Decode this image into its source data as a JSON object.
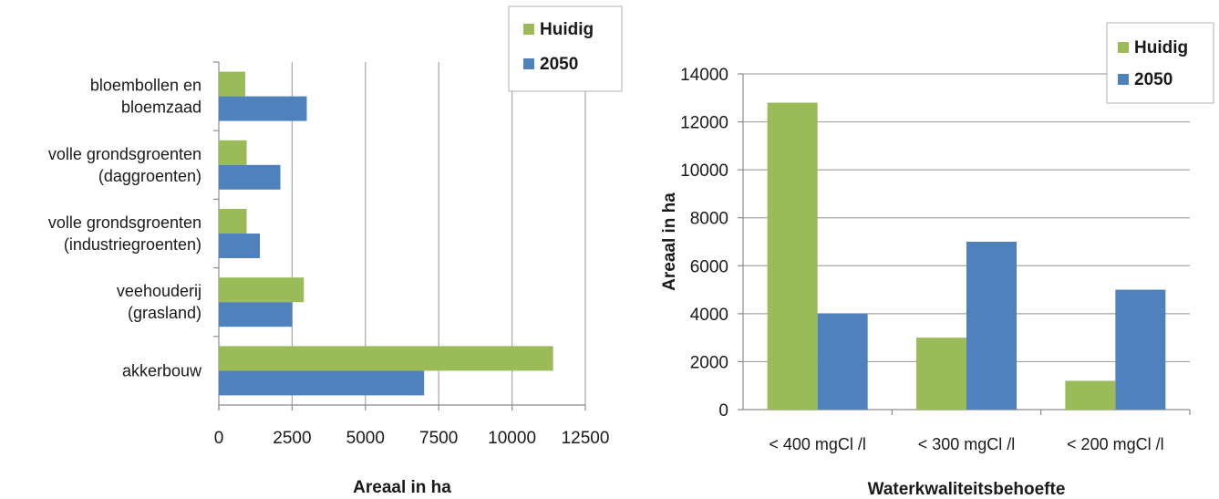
{
  "colors": {
    "huidig": "#9bbb59",
    "y2050": "#4f81bd",
    "grid": "#a6a6a6",
    "axis": "#8c8c8c"
  },
  "chart_data": [
    {
      "type": "bar",
      "orientation": "horizontal",
      "categories": [
        [
          "bloembollen en",
          "bloemzaad"
        ],
        [
          "volle grondsgroenten",
          "(daggroenten)"
        ],
        [
          "volle grondsgroenten",
          "(industriegroenten)"
        ],
        [
          "veehouderij",
          "(grasland)"
        ],
        [
          "akkerbouw"
        ]
      ],
      "series": [
        {
          "name": "Huidig",
          "values": [
            900,
            950,
            950,
            2900,
            11400
          ]
        },
        {
          "name": "2050",
          "values": [
            3000,
            2100,
            1400,
            2500,
            7000
          ]
        }
      ],
      "xlabel": "Areaal in ha",
      "ylabel": "",
      "xlim": [
        0,
        12500
      ],
      "xticks": [
        "0",
        "2500",
        "5000",
        "7500",
        "10000",
        "12500"
      ],
      "grid": "vertical",
      "legend": "top-right"
    },
    {
      "type": "bar",
      "orientation": "vertical",
      "categories": [
        "< 400 mgCl /l",
        "< 300 mgCl /l",
        "< 200 mgCl /l"
      ],
      "series": [
        {
          "name": "Huidig",
          "values": [
            12800,
            3000,
            1200
          ]
        },
        {
          "name": "2050",
          "values": [
            4000,
            7000,
            5000
          ]
        }
      ],
      "xlabel": "Waterkwaliteitsbehoefte",
      "ylabel": "Areaal in ha",
      "ylim": [
        0,
        14000
      ],
      "yticks": [
        "0",
        "2000",
        "4000",
        "6000",
        "8000",
        "10000",
        "12000",
        "14000"
      ],
      "grid": "horizontal",
      "legend": "top-right"
    }
  ]
}
